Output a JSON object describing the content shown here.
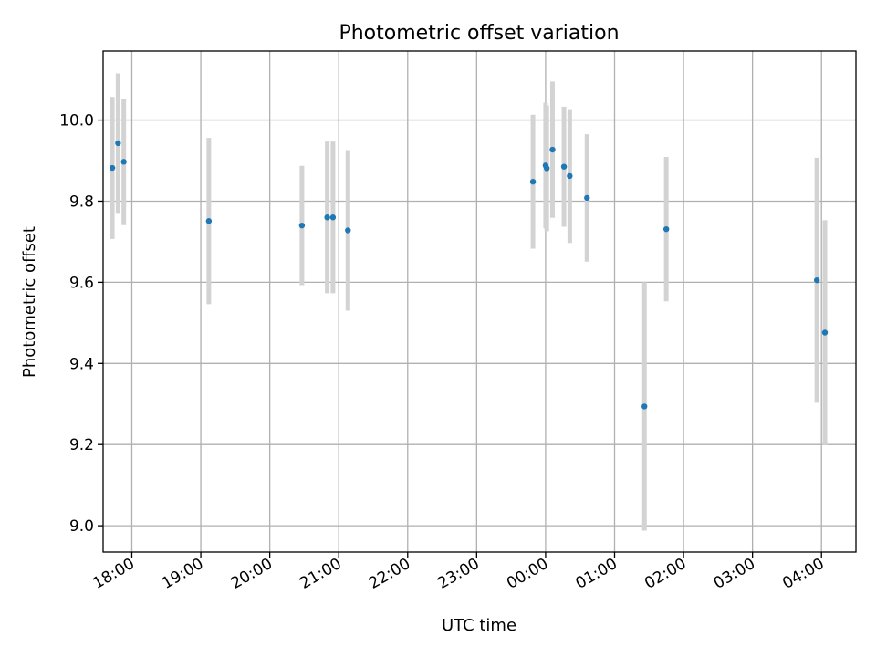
{
  "chart_data": {
    "type": "scatter",
    "title": "Photometric offset variation",
    "xlabel": "UTC time",
    "ylabel": "Photometric offset",
    "x_ticks": [
      "18:00",
      "19:00",
      "20:00",
      "21:00",
      "22:00",
      "23:00",
      "00:00",
      "01:00",
      "02:00",
      "03:00",
      "04:00"
    ],
    "y_ticks": [
      "9.0",
      "9.2",
      "9.4",
      "9.6",
      "9.8",
      "10.0"
    ],
    "xlim": [
      "17:35",
      "04:30"
    ],
    "ylim": [
      8.935,
      10.17
    ],
    "grid": true,
    "marker_color": "#1f77b4",
    "errorbar_color": "#d3d3d3",
    "points": [
      {
        "time": "17:43",
        "y": 9.882,
        "err": 0.175
      },
      {
        "time": "17:48",
        "y": 9.943,
        "err": 0.172
      },
      {
        "time": "17:53",
        "y": 9.897,
        "err": 0.156
      },
      {
        "time": "19:07",
        "y": 9.751,
        "err": 0.205
      },
      {
        "time": "20:28",
        "y": 9.74,
        "err": 0.147
      },
      {
        "time": "20:50",
        "y": 9.76,
        "err": 0.187
      },
      {
        "time": "20:55",
        "y": 9.76,
        "err": 0.187
      },
      {
        "time": "21:08",
        "y": 9.728,
        "err": 0.198
      },
      {
        "time": "23:49",
        "y": 9.848,
        "err": 0.165
      },
      {
        "time": "00:00",
        "y": 9.888,
        "err": 0.155
      },
      {
        "time": "00:01",
        "y": 9.881,
        "err": 0.155
      },
      {
        "time": "00:06",
        "y": 9.927,
        "err": 0.168
      },
      {
        "time": "00:16",
        "y": 9.885,
        "err": 0.148
      },
      {
        "time": "00:21",
        "y": 9.862,
        "err": 0.165
      },
      {
        "time": "00:36",
        "y": 9.808,
        "err": 0.157
      },
      {
        "time": "01:26",
        "y": 9.294,
        "err": 0.306
      },
      {
        "time": "01:45",
        "y": 9.731,
        "err": 0.178
      },
      {
        "time": "03:56",
        "y": 9.605,
        "err": 0.302
      },
      {
        "time": "04:03",
        "y": 9.476,
        "err": 0.277
      }
    ]
  }
}
